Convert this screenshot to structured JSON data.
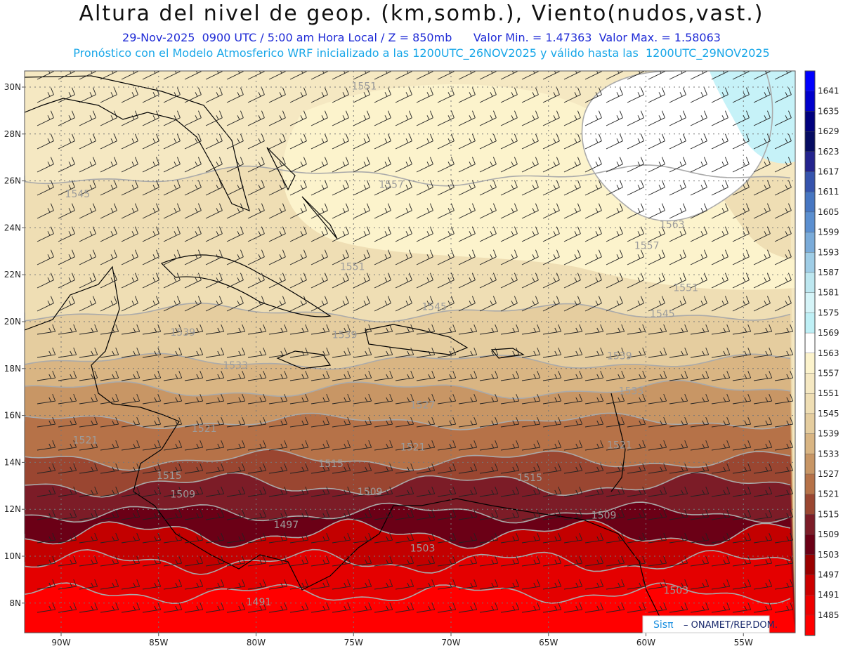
{
  "header": {
    "title": "Altura del nivel de geop. (km,somb.), Viento(nudos,vast.)",
    "subtitle_left": "29-Nov-2025  0900 UTC / 5:00 am Hora Local / Z = 850mb",
    "subtitle_right": "Valor Min. = 1.47363  Valor Max. = 1.58063",
    "forecast_line": "Pronóstico con el Modelo Atmosferico WRF inicializado a las 1200UTC_26NOV2025 y válido hasta las  1200UTC_29NOV2025"
  },
  "map": {
    "lon_labels": [
      "90W",
      "85W",
      "80W",
      "75W",
      "70W",
      "65W",
      "60W",
      "55W"
    ],
    "lat_labels": [
      "30N",
      "28N",
      "26N",
      "24N",
      "22N",
      "20N",
      "18N",
      "16N",
      "14N",
      "12N",
      "10N",
      "8N"
    ],
    "contour_labels": [
      {
        "text": "1551",
        "lon": -75.1,
        "lat": 29.9
      },
      {
        "text": "1545",
        "lon": -89.8,
        "lat": 25.3
      },
      {
        "text": "1557",
        "lon": -73.7,
        "lat": 25.7
      },
      {
        "text": "1563",
        "lon": -59.3,
        "lat": 24.0
      },
      {
        "text": "1557",
        "lon": -60.6,
        "lat": 23.1
      },
      {
        "text": "1551",
        "lon": -75.7,
        "lat": 22.2
      },
      {
        "text": "1551",
        "lon": -58.6,
        "lat": 21.3
      },
      {
        "text": "1545",
        "lon": -71.5,
        "lat": 20.5
      },
      {
        "text": "1545",
        "lon": -59.8,
        "lat": 20.2
      },
      {
        "text": "1539",
        "lon": -84.4,
        "lat": 19.4
      },
      {
        "text": "1539",
        "lon": -76.1,
        "lat": 19.3
      },
      {
        "text": "1539",
        "lon": -62.0,
        "lat": 18.4
      },
      {
        "text": "1533",
        "lon": -81.7,
        "lat": 18.0
      },
      {
        "text": "1533",
        "lon": -61.4,
        "lat": 16.9
      },
      {
        "text": "1527",
        "lon": -72.1,
        "lat": 16.3
      },
      {
        "text": "1521",
        "lon": -83.3,
        "lat": 15.3
      },
      {
        "text": "1521",
        "lon": -89.4,
        "lat": 14.8
      },
      {
        "text": "1521",
        "lon": -72.6,
        "lat": 14.5
      },
      {
        "text": "1521",
        "lon": -62.0,
        "lat": 14.6
      },
      {
        "text": "1515",
        "lon": -76.8,
        "lat": 13.8
      },
      {
        "text": "1515",
        "lon": -85.1,
        "lat": 13.3
      },
      {
        "text": "1515",
        "lon": -66.6,
        "lat": 13.2
      },
      {
        "text": "1509",
        "lon": -84.4,
        "lat": 12.5
      },
      {
        "text": "1509",
        "lon": -74.8,
        "lat": 12.6
      },
      {
        "text": "1509",
        "lon": -62.8,
        "lat": 11.6
      },
      {
        "text": "1497",
        "lon": -79.1,
        "lat": 11.2
      },
      {
        "text": "1503",
        "lon": -72.1,
        "lat": 10.2
      },
      {
        "text": "1503",
        "lon": -59.1,
        "lat": 8.4
      },
      {
        "text": "1491",
        "lon": -80.5,
        "lat": 7.9
      }
    ],
    "credit_logo": "Sisπ",
    "credit_text": "– ONAMET/REP.DOM."
  },
  "colorbar": {
    "levels": [
      "1641",
      "1635",
      "1629",
      "1623",
      "1617",
      "1611",
      "1605",
      "1599",
      "1593",
      "1587",
      "1581",
      "1575",
      "1569",
      "1563",
      "1557",
      "1551",
      "1545",
      "1539",
      "1533",
      "1527",
      "1521",
      "1515",
      "1509",
      "1503",
      "1497",
      "1491",
      "1485"
    ],
    "colors": [
      "#0000ff",
      "#0000cc",
      "#00007e",
      "#060c62",
      "#23238e",
      "#3553ad",
      "#4676c2",
      "#5b8fd0",
      "#7aabd9",
      "#9fcde6",
      "#bde7f0",
      "#d5f4f8",
      "#bff0f6",
      "#ffffff",
      "#fcf3cc",
      "#f5e8c2",
      "#efdeb4",
      "#e5cd9f",
      "#d9b583",
      "#c89665",
      "#b67248",
      "#9a4631",
      "#7c1c27",
      "#6b0016",
      "#9a0000",
      "#cc0000",
      "#ee0000",
      "#ff0000"
    ]
  },
  "legend_colors": {
    "title": "#111111",
    "subtitle": "#1f2bd6",
    "forecast": "#19a7e8",
    "contour": "#aaaaaa",
    "coast": "#000000"
  }
}
